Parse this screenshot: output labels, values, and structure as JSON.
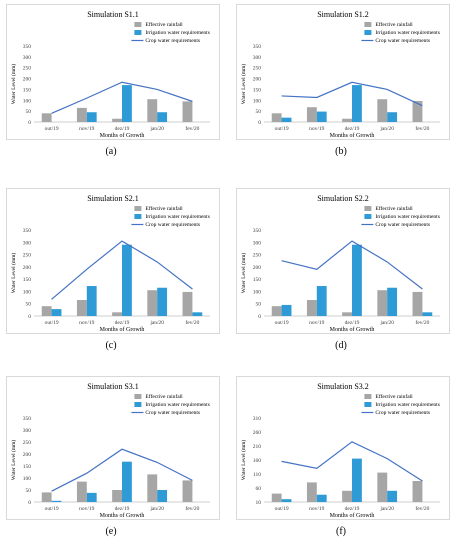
{
  "colors": {
    "rainfall": "#a6a6a6",
    "irrigation": "#2e9bd6",
    "crop": "#4472c4"
  },
  "legend": {
    "rainfall": "Effective rainfall",
    "irrigation": "Irrigation water requirements",
    "crop": "Crop water requirements"
  },
  "chart_data": [
    {
      "id": "s11",
      "caption": "(a)",
      "type": "bar",
      "title": "Simulation S1.1",
      "xlabel": "Months of Growth",
      "ylabel": "Water Level (mm)",
      "categories": [
        "out/19",
        "nov/19",
        "dez/19",
        "jan/20",
        "fev/20"
      ],
      "yticks": [
        "0",
        "50",
        "100",
        "150",
        "200",
        "250",
        "300",
        "350"
      ],
      "ylim": [
        0,
        350
      ],
      "series": [
        {
          "name": "Effective rainfall",
          "type": "bar",
          "values": [
            40,
            65,
            15,
            105,
            95
          ]
        },
        {
          "name": "Irrigation water requirements",
          "type": "bar",
          "values": [
            0,
            45,
            170,
            45,
            0
          ]
        },
        {
          "name": "Crop water requirements",
          "type": "line",
          "values": [
            40,
            110,
            183,
            150,
            95
          ]
        }
      ]
    },
    {
      "id": "s12",
      "caption": "(b)",
      "type": "bar",
      "title": "Simulation S1.2",
      "xlabel": "Months of Growth",
      "ylabel": "Water Level (mm)",
      "categories": [
        "out/19",
        "nov/19",
        "dez/19",
        "jan/20",
        "fev/20"
      ],
      "yticks": [
        "0",
        "50",
        "100",
        "150",
        "200",
        "250",
        "300",
        "350"
      ],
      "ylim": [
        0,
        350
      ],
      "series": [
        {
          "name": "Effective rainfall",
          "type": "bar",
          "values": [
            40,
            68,
            15,
            105,
            97
          ]
        },
        {
          "name": "Irrigation water requirements",
          "type": "bar",
          "values": [
            20,
            48,
            170,
            45,
            0
          ]
        },
        {
          "name": "Crop water requirements",
          "type": "line",
          "values": [
            120,
            113,
            183,
            150,
            75
          ]
        }
      ]
    },
    {
      "id": "s21",
      "caption": "(c)",
      "type": "bar",
      "title": "Simulation S2.1",
      "xlabel": "Months of Growth",
      "ylabel": "Water Level (mm)",
      "categories": [
        "out/19",
        "nov/19",
        "dez/19",
        "jan/20",
        "fev/20"
      ],
      "yticks": [
        "0",
        "50",
        "100",
        "150",
        "200",
        "250",
        "300",
        "350"
      ],
      "ylim": [
        0,
        350
      ],
      "series": [
        {
          "name": "Effective rainfall",
          "type": "bar",
          "values": [
            40,
            65,
            15,
            105,
            98
          ]
        },
        {
          "name": "Irrigation water requirements",
          "type": "bar",
          "values": [
            28,
            122,
            290,
            115,
            15
          ]
        },
        {
          "name": "Crop water requirements",
          "type": "line",
          "values": [
            68,
            190,
            305,
            220,
            110
          ]
        }
      ]
    },
    {
      "id": "s22",
      "caption": "(d)",
      "type": "bar",
      "title": "Simulation S2.2",
      "xlabel": "Months of Growth",
      "ylabel": "Water Level (mm)",
      "categories": [
        "out/19",
        "nov/19",
        "dez/19",
        "jan/20",
        "fev/20"
      ],
      "yticks": [
        "0",
        "50",
        "100",
        "150",
        "200",
        "250",
        "300",
        "350"
      ],
      "ylim": [
        0,
        350
      ],
      "series": [
        {
          "name": "Effective rainfall",
          "type": "bar",
          "values": [
            40,
            65,
            15,
            105,
            98
          ]
        },
        {
          "name": "Irrigation water requirements",
          "type": "bar",
          "values": [
            45,
            122,
            290,
            115,
            15
          ]
        },
        {
          "name": "Crop water requirements",
          "type": "line",
          "values": [
            225,
            190,
            305,
            220,
            110
          ]
        }
      ]
    },
    {
      "id": "s31",
      "caption": "(e)",
      "type": "bar",
      "title": "Simulation S3.1",
      "xlabel": "Months of Growth",
      "ylabel": "Water Level (mm)",
      "categories": [
        "out/19",
        "nov/19",
        "dez/19",
        "jan/20",
        "fev/20"
      ],
      "yticks": [
        "0",
        "50",
        "100",
        "150",
        "200",
        "250",
        "300",
        "350"
      ],
      "ylim": [
        0,
        350
      ],
      "series": [
        {
          "name": "Effective rainfall",
          "type": "bar",
          "values": [
            40,
            85,
            50,
            115,
            90
          ]
        },
        {
          "name": "Irrigation water requirements",
          "type": "bar",
          "values": [
            5,
            38,
            168,
            50,
            0
          ]
        },
        {
          "name": "Crop water requirements",
          "type": "line",
          "values": [
            45,
            120,
            220,
            165,
            90
          ]
        }
      ]
    },
    {
      "id": "s32",
      "caption": "(f)",
      "type": "bar",
      "title": "Simulation S3.2",
      "xlabel": "Months of Growth",
      "ylabel": "Water Level (mm)",
      "categories": [
        "out/19",
        "nov/19",
        "dez/19",
        "jan/20",
        "fev/20"
      ],
      "yticks": [
        "10",
        "60",
        "110",
        "160",
        "210",
        "260",
        "310"
      ],
      "ylim": [
        10,
        310
      ],
      "series": [
        {
          "name": "Effective rainfall",
          "type": "bar",
          "values": [
            40,
            80,
            50,
            115,
            85
          ]
        },
        {
          "name": "Irrigation water requirements",
          "type": "bar",
          "values": [
            20,
            36,
            165,
            50,
            0
          ]
        },
        {
          "name": "Crop water requirements",
          "type": "line",
          "values": [
            155,
            130,
            225,
            165,
            85
          ]
        }
      ]
    }
  ]
}
